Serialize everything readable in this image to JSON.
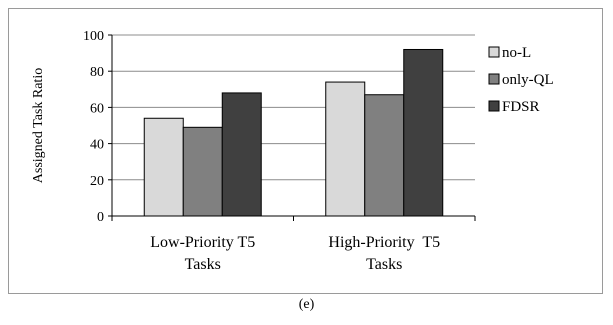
{
  "caption": "(e)",
  "chart_data": {
    "type": "bar",
    "title": "",
    "ylabel": "Assigned Task Ratio",
    "xlabel": "",
    "ylim": [
      0,
      100
    ],
    "yticks": [
      0,
      20,
      40,
      60,
      80,
      100
    ],
    "grid": true,
    "legend_position": "right",
    "categories": [
      [
        "Low-Priority T5",
        "Tasks"
      ],
      [
        "High-Priority  T5",
        "Tasks"
      ]
    ],
    "series": [
      {
        "name": "no-L",
        "values": [
          54,
          74
        ],
        "color": "#d9d9d9"
      },
      {
        "name": "only-QL",
        "values": [
          49,
          67
        ],
        "color": "#808080"
      },
      {
        "name": "FDSR",
        "values": [
          68,
          92
        ],
        "color": "#404040"
      }
    ]
  }
}
